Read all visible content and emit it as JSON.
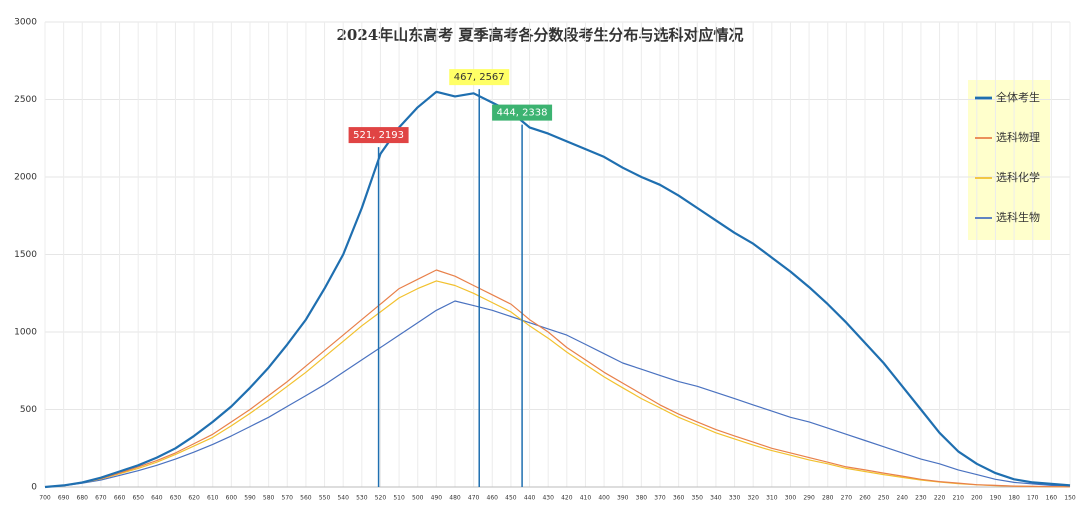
{
  "chart_data": {
    "type": "line",
    "title": "2024年山东高考 夏季高考各分数段考生分布与选科对应情况",
    "x": [
      700,
      690,
      680,
      670,
      660,
      650,
      640,
      630,
      620,
      610,
      600,
      590,
      580,
      570,
      560,
      550,
      540,
      530,
      520,
      510,
      500,
      490,
      480,
      470,
      460,
      450,
      440,
      430,
      420,
      410,
      400,
      390,
      380,
      370,
      360,
      350,
      340,
      330,
      320,
      310,
      300,
      290,
      280,
      270,
      260,
      250,
      240,
      230,
      220,
      210,
      200,
      190,
      180,
      170,
      160,
      150
    ],
    "xlim": [
      700,
      150
    ],
    "xticks": [
      700,
      690,
      680,
      670,
      660,
      650,
      640,
      630,
      620,
      610,
      600,
      590,
      580,
      570,
      560,
      550,
      540,
      530,
      520,
      510,
      500,
      490,
      480,
      470,
      460,
      450,
      440,
      430,
      420,
      410,
      400,
      390,
      380,
      370,
      360,
      350,
      340,
      330,
      320,
      310,
      300,
      290,
      280,
      270,
      260,
      250,
      240,
      230,
      220,
      210,
      200,
      190,
      180,
      170,
      160,
      150
    ],
    "ylim": [
      0,
      3000
    ],
    "yticks": [
      0,
      500,
      1000,
      1500,
      2000,
      2500,
      3000
    ],
    "grid": true,
    "legend": "right",
    "series": [
      {
        "name": "全体考生",
        "color": "#1f6fb0",
        "width": 2.2,
        "values": [
          0,
          10,
          30,
          60,
          100,
          140,
          190,
          250,
          330,
          420,
          520,
          640,
          770,
          920,
          1080,
          1280,
          1500,
          1800,
          2150,
          2320,
          2450,
          2550,
          2520,
          2540,
          2480,
          2420,
          2320,
          2280,
          2230,
          2180,
          2130,
          2060,
          2000,
          1950,
          1880,
          1800,
          1720,
          1640,
          1570,
          1480,
          1390,
          1290,
          1180,
          1060,
          930,
          800,
          650,
          500,
          350,
          230,
          150,
          90,
          50,
          30,
          20,
          10
        ]
      },
      {
        "name": "选科物理",
        "color": "#e8804a",
        "width": 1.2,
        "values": [
          0,
          10,
          30,
          55,
          90,
          130,
          170,
          220,
          280,
          340,
          420,
          500,
          590,
          680,
          780,
          880,
          980,
          1080,
          1180,
          1280,
          1340,
          1400,
          1360,
          1300,
          1240,
          1180,
          1080,
          1000,
          900,
          820,
          740,
          670,
          600,
          530,
          470,
          420,
          370,
          330,
          290,
          250,
          220,
          190,
          160,
          130,
          110,
          90,
          70,
          50,
          35,
          25,
          15,
          10,
          6,
          4,
          2,
          1
        ]
      },
      {
        "name": "选科化学",
        "color": "#f2c12e",
        "width": 1.2,
        "values": [
          0,
          10,
          28,
          52,
          85,
          120,
          160,
          210,
          265,
          320,
          395,
          475,
          560,
          650,
          740,
          840,
          940,
          1040,
          1130,
          1220,
          1280,
          1330,
          1300,
          1250,
          1190,
          1130,
          1040,
          960,
          870,
          790,
          710,
          640,
          570,
          510,
          450,
          400,
          350,
          310,
          270,
          235,
          205,
          175,
          150,
          120,
          100,
          80,
          62,
          45,
          32,
          22,
          14,
          9,
          5,
          3,
          2,
          1
        ]
      },
      {
        "name": "选科生物",
        "color": "#4a72c0",
        "width": 1.2,
        "values": [
          0,
          8,
          25,
          45,
          75,
          105,
          140,
          180,
          225,
          275,
          330,
          390,
          450,
          520,
          590,
          660,
          740,
          820,
          900,
          980,
          1060,
          1140,
          1200,
          1170,
          1140,
          1100,
          1060,
          1020,
          980,
          920,
          860,
          800,
          760,
          720,
          680,
          650,
          610,
          570,
          530,
          490,
          450,
          420,
          380,
          340,
          300,
          260,
          220,
          180,
          150,
          110,
          80,
          50,
          30,
          20,
          10,
          5
        ]
      }
    ],
    "annotations": [
      {
        "label": "521, 2193",
        "x": 521,
        "y": 2193,
        "color": "#e04444",
        "text_color": "#ffffff"
      },
      {
        "label": "467, 2567",
        "x": 467,
        "y": 2567,
        "color": "#ffff66",
        "text_color": "#333333"
      },
      {
        "label": "444, 2338",
        "x": 444,
        "y": 2338,
        "color": "#3cb371",
        "text_color": "#ffffff"
      }
    ]
  }
}
